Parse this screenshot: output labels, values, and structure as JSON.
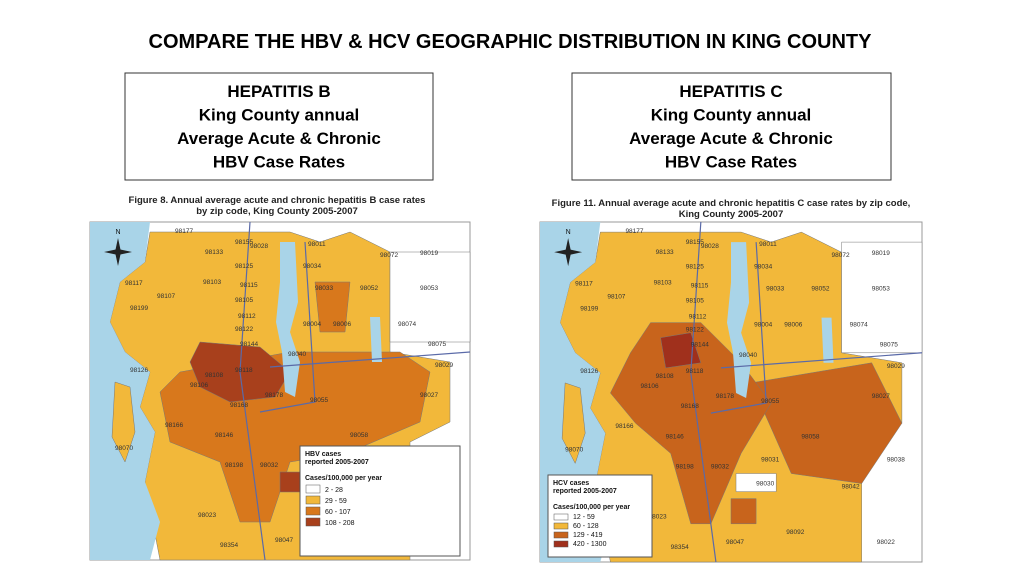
{
  "title": "COMPARE THE HBV & HCV GEOGRAPHIC DISTRIBUTION IN KING COUNTY",
  "panels": [
    {
      "heading": [
        "HEPATITIS B",
        "King County annual",
        "Average Acute & Chronic",
        "HBV Case Rates"
      ],
      "caption": [
        "Figure 8. Annual average acute and chronic hepatitis B case rates",
        "by zip code, King County 2005-2007"
      ],
      "compass": "N",
      "legend": {
        "title": [
          "HBV cases",
          "reported 2005-2007"
        ],
        "unit": "Cases/100,000 per year",
        "items": [
          {
            "label": "2 - 28",
            "color": "#ffffff"
          },
          {
            "label": "29 - 59",
            "color": "#f2b83a"
          },
          {
            "label": "60 - 107",
            "color": "#d8781c"
          },
          {
            "label": "108 - 208",
            "color": "#a8401c"
          }
        ]
      },
      "zips": [
        "98177",
        "98155",
        "98028",
        "98011",
        "98072",
        "98019",
        "98133",
        "98125",
        "98034",
        "98117",
        "98103",
        "98115",
        "98033",
        "98052",
        "98053",
        "98107",
        "98105",
        "98199",
        "98112",
        "98004",
        "98006",
        "98074",
        "98122",
        "98144",
        "98075",
        "98040",
        "98118",
        "98029",
        "98108",
        "98106",
        "98126",
        "98178",
        "98055",
        "98027",
        "98166",
        "98146",
        "98168",
        "98058",
        "98070",
        "98198",
        "98031",
        "98038",
        "98032",
        "98030",
        "98042",
        "98023",
        "98092",
        "98022",
        "98047",
        "98354"
      ]
    },
    {
      "heading": [
        "HEPATITIS C",
        "King County annual",
        "Average Acute & Chronic",
        "HBV Case Rates"
      ],
      "caption": [
        "Figure 11. Annual average acute and chronic hepatitis C case rates by zip code,",
        "King County 2005-2007"
      ],
      "compass": "N",
      "legend": {
        "title": [
          "HCV cases",
          "reported 2005-2007"
        ],
        "unit": "Cases/100,000 per year",
        "items": [
          {
            "label": "12 - 59",
            "color": "#ffffff"
          },
          {
            "label": "60 - 128",
            "color": "#f2b83a"
          },
          {
            "label": "129 - 419",
            "color": "#c8641c"
          },
          {
            "label": "420 - 1300",
            "color": "#a0301c"
          }
        ]
      },
      "zips": [
        "98177",
        "98155",
        "98028",
        "98011",
        "98072",
        "98019",
        "98133",
        "98125",
        "98034",
        "98117",
        "98103",
        "98115",
        "98033",
        "98052",
        "98053",
        "98107",
        "98105",
        "98199",
        "98112",
        "98004",
        "98006",
        "98074",
        "98122",
        "98144",
        "98075",
        "98040",
        "98118",
        "98029",
        "98108",
        "98106",
        "98126",
        "98178",
        "98055",
        "98027",
        "98166",
        "98146",
        "98168",
        "98058",
        "98070",
        "98198",
        "98031",
        "98038",
        "98032",
        "98030",
        "98042",
        "98023",
        "98092",
        "98022",
        "98047",
        "98354"
      ]
    }
  ]
}
